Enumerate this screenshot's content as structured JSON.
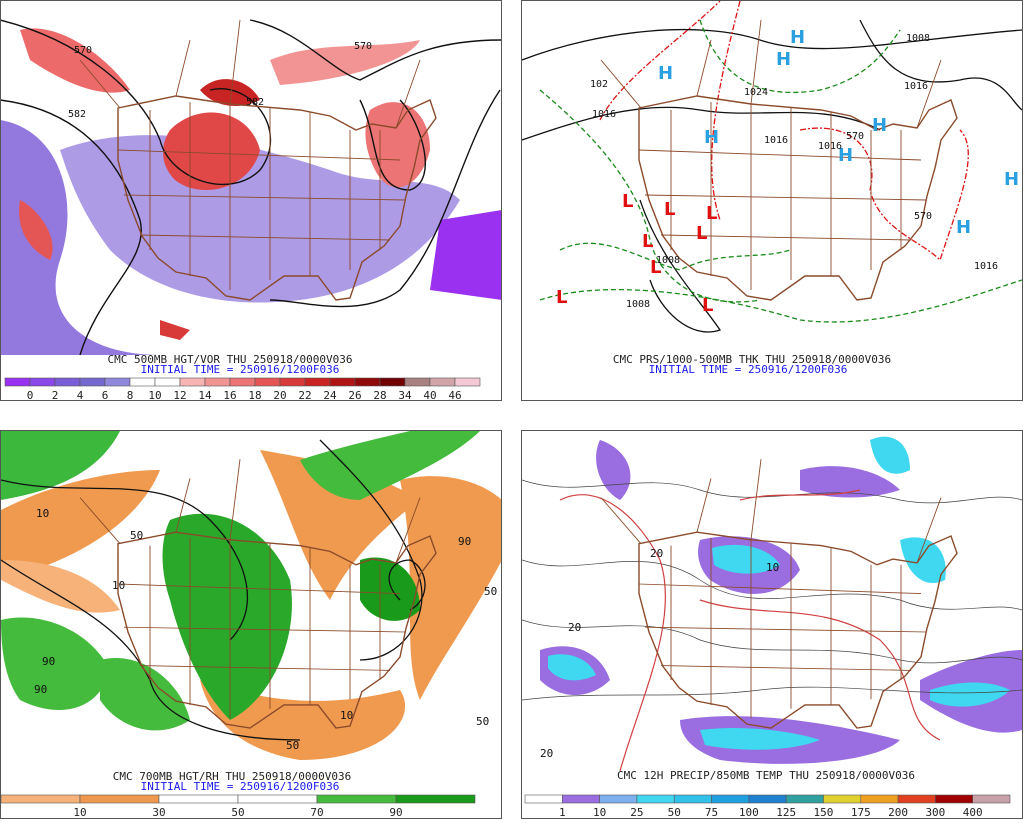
{
  "panels": [
    {
      "caption": "CMC 500MB HGT/VOR THU 250918/0000V036",
      "initial_time": "INITIAL TIME = 250916/1200F036",
      "map_labels": [
        "570",
        "570",
        "582",
        "582"
      ],
      "legend": {
        "colors": [
          "#9a30f0",
          "#8a48e8",
          "#7a5ed8",
          "#7468d0",
          "#9088dc",
          "#ffffff",
          "#ffffff",
          "#f7b4b4",
          "#f29494",
          "#ec7474",
          "#e45656",
          "#d83a3a",
          "#c82424",
          "#b01414",
          "#900a0a",
          "#700000",
          "#a88080",
          "#d0a4a8",
          "#f4c8d4"
        ],
        "labels": [
          0,
          2,
          4,
          6,
          8,
          10,
          12,
          14,
          16,
          18,
          20,
          22,
          24,
          26,
          28,
          34,
          40,
          46
        ]
      }
    },
    {
      "caption": "CMC PRS/1000-500MB THK THU 250918/0000V036",
      "initial_time": "INITIAL TIME = 250916/1200F036",
      "map_labels": [
        "H",
        "H",
        "H",
        "H",
        "H",
        "H",
        "H",
        "H",
        "L",
        "L",
        "L",
        "L",
        "L",
        "L",
        "L",
        "L",
        "1008",
        "1024",
        "1016",
        "1016",
        "1016",
        "1008",
        "1008",
        "1016",
        "102",
        "1016",
        "570",
        "570"
      ]
    },
    {
      "caption": "CMC 700MB HGT/RH THU 250918/0000V036",
      "initial_time": "INITIAL TIME = 250916/1200F036",
      "map_labels": [
        "10",
        "10",
        "50",
        "90",
        "90",
        "50",
        "10",
        "50",
        "90",
        "50"
      ],
      "legend": {
        "colors": [
          "#f7b27a",
          "#f0984e",
          "#ffffff",
          "#ffffff",
          "#44bb3c",
          "#1a9a1a"
        ],
        "labels": [
          10,
          30,
          50,
          70,
          90
        ]
      }
    },
    {
      "caption": "CMC 12H PRECIP/850MB TEMP THU 250918/0000V036",
      "map_labels": [
        "20",
        "20",
        "10",
        "20"
      ],
      "legend": {
        "colors": [
          "#ffffff",
          "#9a6ee0",
          "#7eb0f0",
          "#40d8f0",
          "#30c0e8",
          "#20a0e0",
          "#2080d0",
          "#30a0a0",
          "#e0d030",
          "#f0a020",
          "#e04020",
          "#a00000",
          "#c8a0a8"
        ],
        "labels": [
          1,
          10,
          25,
          50,
          75,
          100,
          125,
          150,
          175,
          200,
          300,
          400
        ]
      }
    }
  ]
}
